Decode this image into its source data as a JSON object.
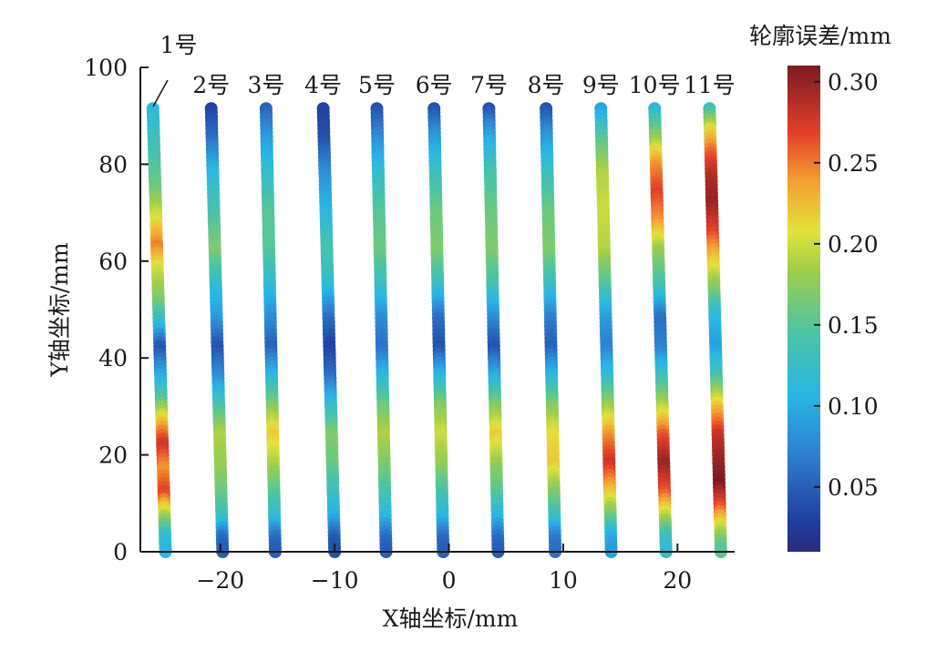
{
  "chart_data": {
    "type": "scatter",
    "title": "",
    "xlabel": "X轴坐标/mm",
    "ylabel": "Y轴坐标/mm",
    "xlim": [
      -27,
      25
    ],
    "ylim": [
      0,
      100
    ],
    "xticks": [
      -20,
      -10,
      0,
      10,
      20
    ],
    "yticks": [
      0,
      20,
      40,
      60,
      80,
      100
    ],
    "colorbar": {
      "title": "轮廓误差/mm",
      "range": [
        0.01,
        0.31
      ],
      "ticks": [
        0.05,
        0.1,
        0.15,
        0.2,
        0.25,
        0.3
      ],
      "colormap": "jet"
    },
    "lines": [
      {
        "label": "1号",
        "x_top": -25.9,
        "x_bottom": -24.8,
        "y_top": 91.5,
        "errors": [
          [
            91.5,
            0.11
          ],
          [
            85,
            0.13
          ],
          [
            75,
            0.16
          ],
          [
            68,
            0.21
          ],
          [
            63,
            0.25
          ],
          [
            58,
            0.2
          ],
          [
            52,
            0.17
          ],
          [
            47,
            0.12
          ],
          [
            42,
            0.04
          ],
          [
            37,
            0.09
          ],
          [
            32,
            0.14
          ],
          [
            27,
            0.22
          ],
          [
            22,
            0.28
          ],
          [
            17,
            0.24
          ],
          [
            12,
            0.27
          ],
          [
            7,
            0.18
          ],
          [
            3,
            0.12
          ],
          [
            1,
            0.11
          ]
        ]
      },
      {
        "label": "2号",
        "x_top": -20.8,
        "x_bottom": -19.8,
        "y_top": 91.5,
        "errors": [
          [
            91.5,
            0.03
          ],
          [
            85,
            0.06
          ],
          [
            78,
            0.11
          ],
          [
            70,
            0.14
          ],
          [
            62,
            0.17
          ],
          [
            55,
            0.12
          ],
          [
            48,
            0.09
          ],
          [
            42,
            0.04
          ],
          [
            36,
            0.08
          ],
          [
            30,
            0.14
          ],
          [
            24,
            0.19
          ],
          [
            18,
            0.18
          ],
          [
            12,
            0.16
          ],
          [
            7,
            0.13
          ],
          [
            3,
            0.06
          ],
          [
            1,
            0.05
          ]
        ]
      },
      {
        "label": "3号",
        "x_top": -16.0,
        "x_bottom": -15.2,
        "y_top": 91.5,
        "errors": [
          [
            91.5,
            0.05
          ],
          [
            85,
            0.09
          ],
          [
            78,
            0.12
          ],
          [
            70,
            0.15
          ],
          [
            62,
            0.15
          ],
          [
            55,
            0.12
          ],
          [
            48,
            0.08
          ],
          [
            42,
            0.05
          ],
          [
            36,
            0.11
          ],
          [
            30,
            0.17
          ],
          [
            24,
            0.22
          ],
          [
            18,
            0.19
          ],
          [
            12,
            0.15
          ],
          [
            7,
            0.12
          ],
          [
            3,
            0.06
          ],
          [
            1,
            0.05
          ]
        ]
      },
      {
        "label": "4号",
        "x_top": -11.0,
        "x_bottom": -10.0,
        "y_top": 91.5,
        "errors": [
          [
            91.5,
            0.03
          ],
          [
            85,
            0.04
          ],
          [
            78,
            0.08
          ],
          [
            70,
            0.11
          ],
          [
            62,
            0.14
          ],
          [
            55,
            0.12
          ],
          [
            48,
            0.06
          ],
          [
            42,
            0.03
          ],
          [
            36,
            0.06
          ],
          [
            30,
            0.12
          ],
          [
            24,
            0.17
          ],
          [
            18,
            0.16
          ],
          [
            12,
            0.13
          ],
          [
            7,
            0.1
          ],
          [
            3,
            0.05
          ],
          [
            1,
            0.04
          ]
        ]
      },
      {
        "label": "5号",
        "x_top": -6.3,
        "x_bottom": -5.5,
        "y_top": 91.5,
        "errors": [
          [
            91.5,
            0.04
          ],
          [
            85,
            0.08
          ],
          [
            78,
            0.12
          ],
          [
            70,
            0.15
          ],
          [
            62,
            0.16
          ],
          [
            55,
            0.13
          ],
          [
            48,
            0.08
          ],
          [
            42,
            0.06
          ],
          [
            36,
            0.11
          ],
          [
            30,
            0.16
          ],
          [
            24,
            0.19
          ],
          [
            18,
            0.17
          ],
          [
            12,
            0.14
          ],
          [
            7,
            0.11
          ],
          [
            3,
            0.06
          ],
          [
            1,
            0.05
          ]
        ]
      },
      {
        "label": "6号",
        "x_top": -1.3,
        "x_bottom": -0.5,
        "y_top": 91.5,
        "errors": [
          [
            91.5,
            0.04
          ],
          [
            85,
            0.09
          ],
          [
            78,
            0.13
          ],
          [
            70,
            0.16
          ],
          [
            62,
            0.17
          ],
          [
            55,
            0.13
          ],
          [
            48,
            0.06
          ],
          [
            42,
            0.04
          ],
          [
            36,
            0.11
          ],
          [
            30,
            0.17
          ],
          [
            24,
            0.2
          ],
          [
            18,
            0.18
          ],
          [
            12,
            0.14
          ],
          [
            7,
            0.11
          ],
          [
            3,
            0.06
          ],
          [
            1,
            0.05
          ]
        ]
      },
      {
        "label": "7号",
        "x_top": 3.5,
        "x_bottom": 4.3,
        "y_top": 91.5,
        "errors": [
          [
            91.5,
            0.04
          ],
          [
            85,
            0.1
          ],
          [
            78,
            0.14
          ],
          [
            70,
            0.16
          ],
          [
            62,
            0.17
          ],
          [
            55,
            0.14
          ],
          [
            48,
            0.08
          ],
          [
            42,
            0.04
          ],
          [
            36,
            0.1
          ],
          [
            30,
            0.17
          ],
          [
            24,
            0.22
          ],
          [
            18,
            0.18
          ],
          [
            12,
            0.15
          ],
          [
            7,
            0.11
          ],
          [
            3,
            0.06
          ],
          [
            1,
            0.05
          ]
        ]
      },
      {
        "label": "8号",
        "x_top": 8.5,
        "x_bottom": 9.3,
        "y_top": 91.5,
        "errors": [
          [
            91.5,
            0.04
          ],
          [
            85,
            0.09
          ],
          [
            78,
            0.13
          ],
          [
            70,
            0.16
          ],
          [
            62,
            0.17
          ],
          [
            55,
            0.13
          ],
          [
            48,
            0.07
          ],
          [
            42,
            0.05
          ],
          [
            36,
            0.11
          ],
          [
            30,
            0.17
          ],
          [
            24,
            0.21
          ],
          [
            18,
            0.22
          ],
          [
            12,
            0.17
          ],
          [
            7,
            0.13
          ],
          [
            3,
            0.07
          ],
          [
            1,
            0.06
          ]
        ]
      },
      {
        "label": "9号",
        "x_top": 13.3,
        "x_bottom": 14.2,
        "y_top": 91.5,
        "errors": [
          [
            91.5,
            0.09
          ],
          [
            85,
            0.15
          ],
          [
            78,
            0.19
          ],
          [
            70,
            0.2
          ],
          [
            62,
            0.19
          ],
          [
            55,
            0.15
          ],
          [
            48,
            0.09
          ],
          [
            42,
            0.07
          ],
          [
            36,
            0.12
          ],
          [
            30,
            0.18
          ],
          [
            24,
            0.24
          ],
          [
            18,
            0.28
          ],
          [
            12,
            0.22
          ],
          [
            7,
            0.16
          ],
          [
            3,
            0.1
          ],
          [
            1,
            0.09
          ]
        ]
      },
      {
        "label": "10号",
        "x_top": 18.0,
        "x_bottom": 19.0,
        "y_top": 91.5,
        "errors": [
          [
            91.5,
            0.11
          ],
          [
            86,
            0.17
          ],
          [
            80,
            0.24
          ],
          [
            74,
            0.27
          ],
          [
            68,
            0.24
          ],
          [
            62,
            0.18
          ],
          [
            55,
            0.14
          ],
          [
            48,
            0.06
          ],
          [
            42,
            0.07
          ],
          [
            36,
            0.13
          ],
          [
            30,
            0.19
          ],
          [
            24,
            0.26
          ],
          [
            18,
            0.3
          ],
          [
            12,
            0.26
          ],
          [
            7,
            0.19
          ],
          [
            3,
            0.13
          ],
          [
            1,
            0.12
          ]
        ]
      },
      {
        "label": "11号",
        "x_top": 22.8,
        "x_bottom": 23.8,
        "y_top": 91.5,
        "errors": [
          [
            91.5,
            0.13
          ],
          [
            87,
            0.21
          ],
          [
            82,
            0.26
          ],
          [
            77,
            0.29
          ],
          [
            72,
            0.3
          ],
          [
            66,
            0.27
          ],
          [
            60,
            0.22
          ],
          [
            54,
            0.17
          ],
          [
            48,
            0.11
          ],
          [
            42,
            0.09
          ],
          [
            36,
            0.14
          ],
          [
            30,
            0.22
          ],
          [
            24,
            0.28
          ],
          [
            18,
            0.3
          ],
          [
            14,
            0.31
          ],
          [
            9,
            0.26
          ],
          [
            5,
            0.2
          ],
          [
            1,
            0.15
          ]
        ]
      }
    ]
  }
}
